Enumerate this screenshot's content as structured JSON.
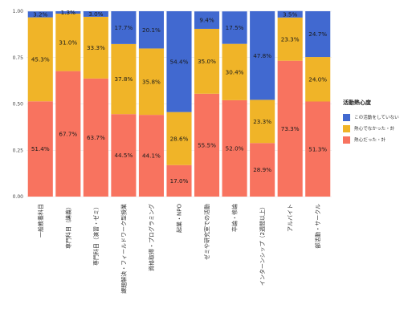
{
  "chart_data": {
    "type": "bar",
    "stacked": true,
    "ylim": [
      0,
      1
    ],
    "yticks": [
      "0.00",
      "0.25",
      "0.50",
      "0.75",
      "1.00"
    ],
    "grid": true,
    "legend_position": "right",
    "legend_title": "活動熱心度",
    "categories": [
      "一般教養科目",
      "専門科目（講義）",
      "専門科目（演習・ゼミ）",
      "課題解決・フィールドワーク型授業",
      "資格取得・プログラミング",
      "起業・NPO",
      "ゼミや研究室での活動",
      "卒論・修論",
      "インターンシップ（2週間以上）",
      "アルバイト",
      "部活動・サークル"
    ],
    "series": [
      {
        "name": "熱心だった・計",
        "color": "#F8735F",
        "values": [
          0.514,
          0.677,
          0.637,
          0.445,
          0.441,
          0.17,
          0.555,
          0.52,
          0.289,
          0.733,
          0.513
        ],
        "labels": [
          "51.4%",
          "67.7%",
          "63.7%",
          "44.5%",
          "44.1%",
          "17.0%",
          "55.5%",
          "52.0%",
          "28.9%",
          "73.3%",
          "51.3%"
        ]
      },
      {
        "name": "熱心でなかった・計",
        "color": "#F0B428",
        "values": [
          0.453,
          0.31,
          0.333,
          0.378,
          0.358,
          0.286,
          0.35,
          0.304,
          0.233,
          0.233,
          0.24
        ],
        "labels": [
          "45.3%",
          "31.0%",
          "33.3%",
          "37.8%",
          "35.8%",
          "28.6%",
          "35.0%",
          "30.4%",
          "23.3%",
          "23.3%",
          "24.0%"
        ]
      },
      {
        "name": "この活動をしていない",
        "color": "#4169D0",
        "values": [
          0.032,
          0.013,
          0.03,
          0.177,
          0.201,
          0.544,
          0.094,
          0.175,
          0.478,
          0.035,
          0.247
        ],
        "labels": [
          "3.2%",
          "1.3%",
          "3.0%",
          "17.7%",
          "20.1%",
          "54.4%",
          "9.4%",
          "17.5%",
          "47.8%",
          "3.5%",
          "24.7%"
        ]
      }
    ],
    "legend_order": [
      "この活動をしていない",
      "熱心でなかった・計",
      "熱心だった・計"
    ]
  }
}
